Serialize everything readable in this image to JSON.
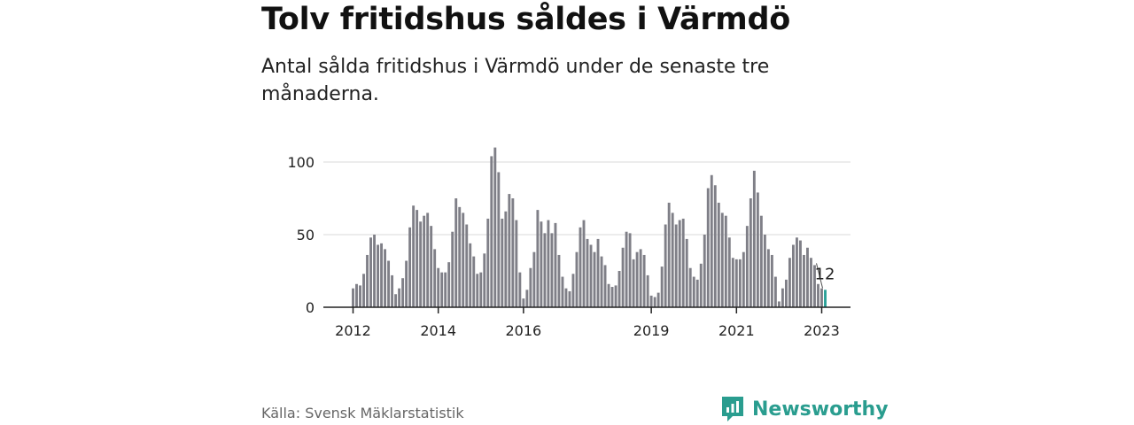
{
  "header": {
    "title": "Tolv fritidshus såldes i Värmdö",
    "subtitle": "Antal sålda fritidshus i Värmdö under de senaste tre månaderna."
  },
  "footer": {
    "source": "Källa: Svensk Mäklarstatistik",
    "brand": "Newsworthy"
  },
  "colors": {
    "bar": "#7f7f87",
    "highlight": "#2aa198",
    "grid": "#d9d9d9",
    "brand": "#2a9d8f"
  },
  "chart_data": {
    "type": "bar",
    "x_start": "2012-01",
    "x_end": "2023-02",
    "x_ticks": [
      {
        "label": "2012",
        "value": "2012-01"
      },
      {
        "label": "2014",
        "value": "2014-01"
      },
      {
        "label": "2016",
        "value": "2016-01"
      },
      {
        "label": "2019",
        "value": "2019-01"
      },
      {
        "label": "2021",
        "value": "2021-01"
      },
      {
        "label": "2023",
        "value": "2023-01"
      }
    ],
    "y_ticks": [
      0,
      50,
      100
    ],
    "ylim": [
      0,
      110
    ],
    "grid": true,
    "annotation": {
      "label": "12",
      "month": "2023-02",
      "value": 12
    },
    "values": [
      13,
      16,
      15,
      23,
      36,
      48,
      50,
      43,
      44,
      40,
      32,
      22,
      9,
      13,
      20,
      32,
      55,
      70,
      67,
      59,
      63,
      65,
      56,
      40,
      27,
      24,
      24,
      31,
      52,
      75,
      69,
      65,
      57,
      44,
      35,
      23,
      24,
      37,
      61,
      104,
      110,
      93,
      61,
      66,
      78,
      75,
      60,
      24,
      6,
      12,
      27,
      38,
      67,
      59,
      51,
      60,
      51,
      58,
      36,
      21,
      13,
      11,
      23,
      38,
      55,
      60,
      47,
      43,
      38,
      47,
      35,
      29,
      16,
      14,
      15,
      25,
      41,
      52,
      51,
      33,
      38,
      40,
      36,
      22,
      8,
      7,
      10,
      28,
      57,
      72,
      65,
      57,
      60,
      61,
      47,
      27,
      21,
      19,
      30,
      50,
      82,
      91,
      84,
      72,
      65,
      63,
      48,
      34,
      33,
      33,
      38,
      56,
      75,
      94,
      79,
      63,
      50,
      40,
      36,
      21,
      4,
      13,
      19,
      34,
      43,
      48,
      46,
      36,
      41,
      34,
      29,
      16,
      13,
      12
    ]
  }
}
